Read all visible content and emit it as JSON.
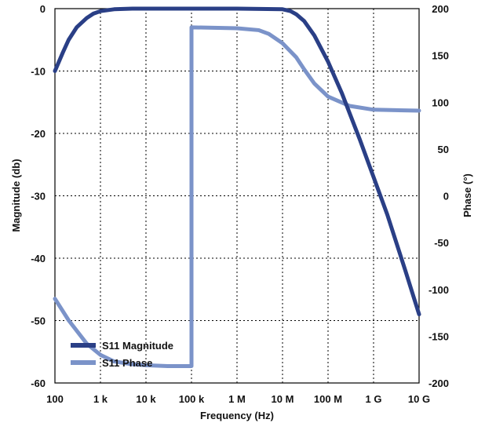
{
  "chart_data": {
    "type": "line",
    "x_scale": "log10",
    "x_ticks": [
      {
        "value": 100,
        "label": "100"
      },
      {
        "value": 1000,
        "label": "1 k"
      },
      {
        "value": 10000,
        "label": "10 k"
      },
      {
        "value": 100000,
        "label": "100 k"
      },
      {
        "value": 1000000,
        "label": "1 M"
      },
      {
        "value": 10000000,
        "label": "10 M"
      },
      {
        "value": 100000000,
        "label": "100 M"
      },
      {
        "value": 1000000000,
        "label": "1 G"
      },
      {
        "value": 10000000000,
        "label": "10 G"
      }
    ],
    "xlim": [
      100,
      10000000000
    ],
    "xlabel": "Frequency (Hz)",
    "y_left": {
      "label": "Magnitude (db)",
      "lim": [
        -60,
        0
      ],
      "ticks": [
        0,
        -10,
        -20,
        -30,
        -40,
        -50,
        -60
      ],
      "tick_labels": [
        "0",
        "-10",
        "-20",
        "-30",
        "-40",
        "-50",
        "-60"
      ]
    },
    "y_right": {
      "label": "Phase (°)",
      "lim": [
        -200,
        200
      ],
      "ticks": [
        200,
        150,
        100,
        50,
        0,
        -50,
        -100,
        -150,
        -200
      ],
      "tick_labels": [
        "200",
        "150",
        "100",
        "50",
        "0",
        "-50",
        "-100",
        "-150",
        "-200"
      ]
    },
    "grid": true,
    "grid_style": "dotted",
    "legend_position": "bottom-left",
    "series": [
      {
        "name": "S11 Magnitude",
        "axis": "left",
        "color": "#2a3f86",
        "x": [
          100,
          150,
          200,
          300,
          500,
          700,
          1000,
          2000,
          5000,
          10000,
          100000,
          1000000,
          10000000,
          15000000,
          20000000,
          30000000,
          50000000,
          100000000,
          200000000,
          500000000,
          1000000000,
          2000000000,
          5000000000,
          10000000000
        ],
        "y": [
          -10,
          -7,
          -5,
          -3,
          -1.5,
          -0.8,
          -0.4,
          -0.1,
          0,
          0,
          0,
          0,
          -0.1,
          -0.4,
          -0.9,
          -2,
          -4.3,
          -8.5,
          -13.5,
          -21,
          -27,
          -33,
          -42,
          -49
        ]
      },
      {
        "name": "S11 Phase",
        "axis": "right",
        "color": "#7b93c9",
        "x": [
          100,
          200,
          500,
          1000,
          2000,
          5000,
          10000,
          30000,
          100000,
          100000,
          1000000,
          3000000,
          5000000,
          10000000,
          20000000,
          30000000,
          50000000,
          100000000,
          300000000,
          1000000000,
          10000000000
        ],
        "y": [
          -110,
          -133,
          -158,
          -170,
          -177,
          -180,
          -181,
          -182,
          -182,
          180,
          179,
          177,
          173,
          163,
          148,
          135,
          120,
          106,
          96,
          92,
          91
        ]
      }
    ]
  }
}
